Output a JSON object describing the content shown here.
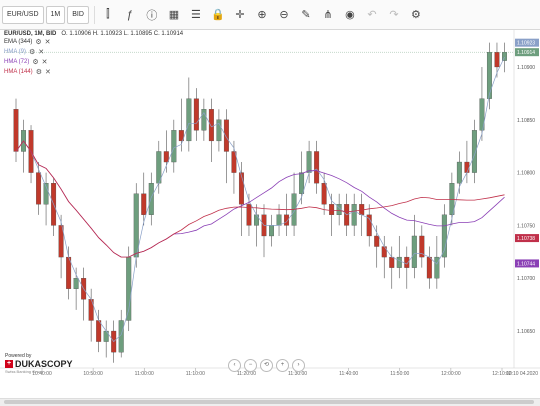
{
  "toolbar": {
    "instrument": "EUR/USD",
    "period": "1M",
    "side": "BID",
    "instrument_label": "EUR/USD"
  },
  "chart_info": {
    "title": "EUR/USD, 1M, BID",
    "ohlc": "O. 1.10906 H. 1.10923 L. 1.10895 C. 1.10914"
  },
  "indicators": [
    {
      "label": "EMA (344)",
      "color": "#333333"
    },
    {
      "label": "HMA (9)",
      "color": "#8aa0c8"
    },
    {
      "label": "HMA (72)",
      "color": "#8a3fb5"
    },
    {
      "label": "HMA (144)",
      "color": "#c0304a"
    }
  ],
  "price_axis": {
    "ticks": [
      "1.10900",
      "1.10850",
      "1.10800",
      "1.10750",
      "1.10700",
      "1.10650"
    ],
    "badges": [
      {
        "text": "1.10914",
        "color": "#6e9e7e"
      },
      {
        "text": "1.10738",
        "color": "#c0304a"
      },
      {
        "text": "1.10744",
        "color": "#8a3fb5"
      },
      {
        "text": "1.10923",
        "color": "#8aa0c8"
      }
    ]
  },
  "time_axis": [
    "10:40:00",
    "10:50:00",
    "11:00:00",
    "11:10:00",
    "11:20:00",
    "11:30:00",
    "11:40:00",
    "11:50:00",
    "12:00:00",
    "12:10:00"
  ],
  "time_axis_edge": "12:10 04.2020",
  "branding": {
    "powered": "Powered by",
    "name": "DUKASCOPY",
    "sub": "Swiss Banking Group"
  },
  "candles": [
    [
      1.1086,
      1.1082,
      1.1087,
      1.1081
    ],
    [
      1.1082,
      1.1084,
      1.1085,
      1.108
    ],
    [
      1.1084,
      1.108,
      1.10845,
      1.1079
    ],
    [
      1.108,
      1.1077,
      1.1081,
      1.1076
    ],
    [
      1.1077,
      1.1079,
      1.108,
      1.1075
    ],
    [
      1.1079,
      1.1075,
      1.10795,
      1.1074
    ],
    [
      1.1075,
      1.1072,
      1.1076,
      1.107
    ],
    [
      1.1072,
      1.1069,
      1.1073,
      1.1068
    ],
    [
      1.1069,
      1.107,
      1.1071,
      1.1067
    ],
    [
      1.107,
      1.1068,
      1.1071,
      1.1066
    ],
    [
      1.1068,
      1.1066,
      1.1069,
      1.1064
    ],
    [
      1.1066,
      1.1064,
      1.1067,
      1.1063
    ],
    [
      1.1064,
      1.1065,
      1.1066,
      1.10625
    ],
    [
      1.1065,
      1.1063,
      1.1066,
      1.1062
    ],
    [
      1.1063,
      1.1066,
      1.1067,
      1.10625
    ],
    [
      1.1066,
      1.1072,
      1.1073,
      1.1065
    ],
    [
      1.1072,
      1.1078,
      1.1079,
      1.1071
    ],
    [
      1.1078,
      1.1076,
      1.108,
      1.1075
    ],
    [
      1.1076,
      1.1079,
      1.108,
      1.1075
    ],
    [
      1.1079,
      1.1082,
      1.1083,
      1.1078
    ],
    [
      1.1082,
      1.1081,
      1.1084,
      1.108
    ],
    [
      1.1081,
      1.1084,
      1.1085,
      1.108
    ],
    [
      1.1084,
      1.1083,
      1.1087,
      1.1082
    ],
    [
      1.1083,
      1.1087,
      1.1089,
      1.1082
    ],
    [
      1.1087,
      1.1084,
      1.1088,
      1.1083
    ],
    [
      1.1084,
      1.1086,
      1.1087,
      1.1083
    ],
    [
      1.1086,
      1.1083,
      1.1087,
      1.1081
    ],
    [
      1.1083,
      1.1085,
      1.1086,
      1.1082
    ],
    [
      1.1085,
      1.1082,
      1.1086,
      1.1079
    ],
    [
      1.1082,
      1.108,
      1.1083,
      1.1078
    ],
    [
      1.108,
      1.1077,
      1.1081,
      1.1074
    ],
    [
      1.1077,
      1.1075,
      1.1078,
      1.1074
    ],
    [
      1.1075,
      1.1076,
      1.1077,
      1.1073
    ],
    [
      1.1076,
      1.1074,
      1.1077,
      1.1072
    ],
    [
      1.1074,
      1.1075,
      1.1076,
      1.1073
    ],
    [
      1.1075,
      1.1076,
      1.1077,
      1.1074
    ],
    [
      1.1076,
      1.1075,
      1.1078,
      1.1074
    ],
    [
      1.1075,
      1.1078,
      1.108,
      1.1074
    ],
    [
      1.1078,
      1.108,
      1.1082,
      1.1077
    ],
    [
      1.108,
      1.1082,
      1.1083,
      1.1079
    ],
    [
      1.1082,
      1.1079,
      1.1083,
      1.1078
    ],
    [
      1.1079,
      1.1077,
      1.108,
      1.1076
    ],
    [
      1.1077,
      1.1076,
      1.1078,
      1.1074
    ],
    [
      1.1076,
      1.1077,
      1.1078,
      1.1075
    ],
    [
      1.1077,
      1.1075,
      1.1078,
      1.1074
    ],
    [
      1.1075,
      1.1077,
      1.1078,
      1.1074
    ],
    [
      1.1077,
      1.1076,
      1.1078,
      1.1074
    ],
    [
      1.1076,
      1.1074,
      1.1077,
      1.1073
    ],
    [
      1.1074,
      1.1073,
      1.1075,
      1.1071
    ],
    [
      1.1073,
      1.1072,
      1.1074,
      1.107
    ],
    [
      1.1072,
      1.1071,
      1.1073,
      1.1069
    ],
    [
      1.1071,
      1.1072,
      1.1074,
      1.107
    ],
    [
      1.1072,
      1.1071,
      1.1073,
      1.1069
    ],
    [
      1.1071,
      1.1074,
      1.1076,
      1.107
    ],
    [
      1.1074,
      1.1072,
      1.1075,
      1.1071
    ],
    [
      1.1072,
      1.107,
      1.1073,
      1.1069
    ],
    [
      1.107,
      1.1072,
      1.1074,
      1.1069
    ],
    [
      1.1072,
      1.1076,
      1.1077,
      1.1071
    ],
    [
      1.1076,
      1.1079,
      1.108,
      1.1075
    ],
    [
      1.1079,
      1.1081,
      1.1082,
      1.1078
    ],
    [
      1.1081,
      1.108,
      1.1083,
      1.1079
    ],
    [
      1.108,
      1.1084,
      1.1085,
      1.1079
    ],
    [
      1.1084,
      1.1087,
      1.109,
      1.1083
    ],
    [
      1.1087,
      1.10914,
      1.10923,
      1.1086
    ],
    [
      1.10914,
      1.109,
      1.10923,
      1.1089
    ],
    [
      1.10906,
      1.10914,
      1.10923,
      1.10895
    ]
  ]
}
